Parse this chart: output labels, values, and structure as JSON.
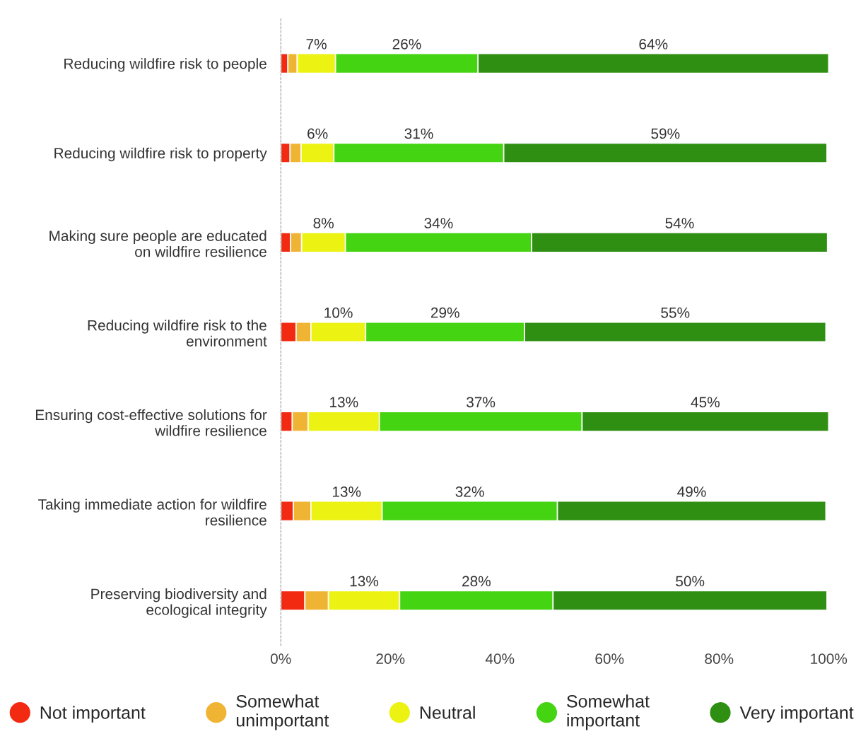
{
  "chart_data": {
    "type": "bar",
    "orientation": "horizontal",
    "stacked": true,
    "categories": [
      "Reducing wildfire risk to people",
      "Reducing wildfire risk to property",
      "Making sure people are educated\non wildfire resilience",
      "Reducing wildfire risk to the\nenvironment",
      "Ensuring cost-effective solutions for\nwildfire resilience",
      "Taking immediate action for wildfire\nresilience",
      "Preserving biodiversity and\necological integrity"
    ],
    "series": [
      {
        "name": "Not important",
        "color": "#f32a12",
        "values": [
          1.3,
          1.7,
          1.8,
          2.8,
          2.1,
          2.3,
          4.4
        ]
      },
      {
        "name": "Somewhat\nunimportant",
        "color": "#f0b434",
        "values": [
          1.7,
          2.0,
          2.0,
          2.7,
          2.9,
          3.2,
          4.3
        ]
      },
      {
        "name": "Neutral",
        "color": "#ecf312",
        "values": [
          7,
          6,
          8,
          10,
          13,
          13,
          13
        ],
        "value_labels": [
          "7%",
          "6%",
          "8%",
          "10%",
          "13%",
          "13%",
          "13%"
        ]
      },
      {
        "name": "Somewhat\nimportant",
        "color": "#44d411",
        "values": [
          26,
          31,
          34,
          29,
          37,
          32,
          28
        ],
        "value_labels": [
          "26%",
          "31%",
          "34%",
          "29%",
          "37%",
          "32%",
          "28%"
        ]
      },
      {
        "name": "Very important",
        "color": "#2e8f12",
        "values": [
          64,
          59,
          54,
          55,
          45,
          49,
          50
        ],
        "value_labels": [
          "64%",
          "59%",
          "54%",
          "55%",
          "45%",
          "49%",
          "50%"
        ]
      }
    ],
    "xlim": [
      0,
      100
    ],
    "xticks": [
      {
        "value": 0,
        "label": "0%"
      },
      {
        "value": 20,
        "label": "20%"
      },
      {
        "value": 40,
        "label": "40%"
      },
      {
        "value": 60,
        "label": "60%"
      },
      {
        "value": 80,
        "label": "80%"
      },
      {
        "value": 100,
        "label": "100%"
      }
    ],
    "grid": false,
    "legend": "bottom"
  }
}
